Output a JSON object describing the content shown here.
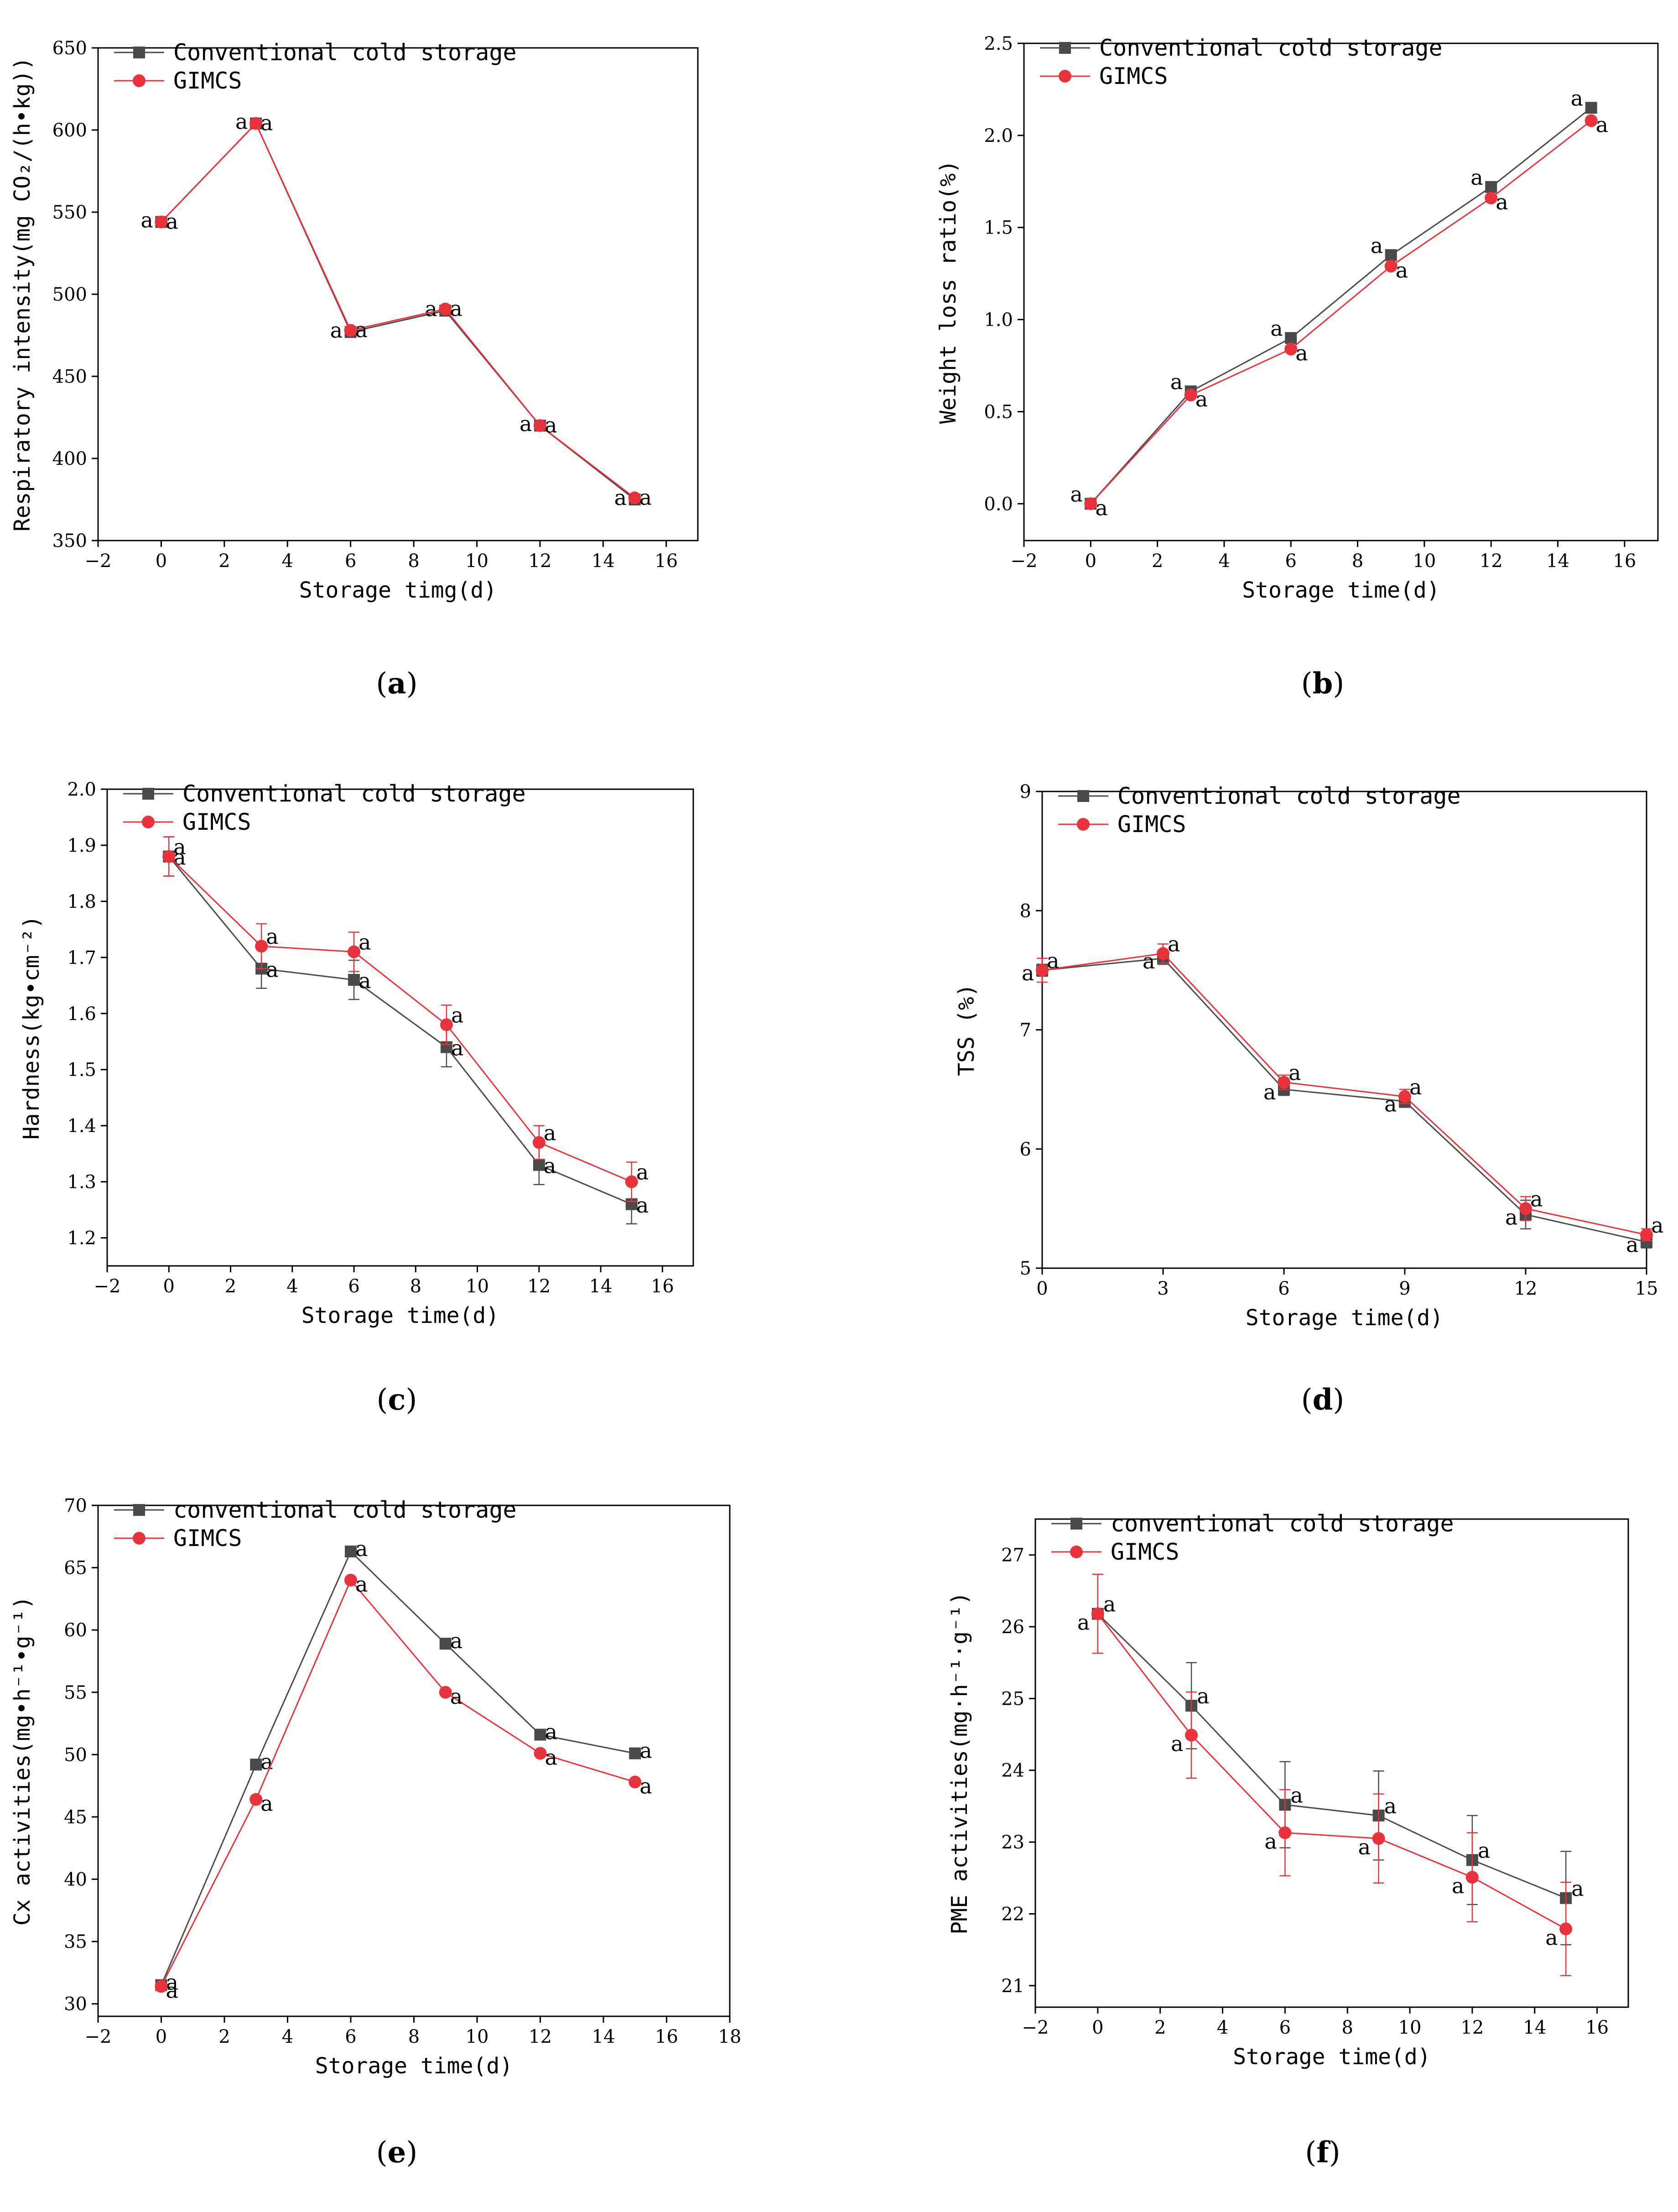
{
  "colors": {
    "series1": "#4a4a4a",
    "series2": "#e8333c",
    "axis": "#000000"
  },
  "chart_data": [
    {
      "id": "a",
      "type": "line",
      "caption": "a",
      "xlabel": "Storage timg(d)",
      "ylabel": "Respiratory intensity(mg CO₂/(h•kg))",
      "xlim": [
        -2,
        17
      ],
      "ylim": [
        350,
        650
      ],
      "xticks": [
        -2,
        0,
        2,
        4,
        6,
        8,
        10,
        12,
        14,
        16
      ],
      "yticks": [
        350,
        400,
        450,
        500,
        550,
        600,
        650
      ],
      "legend": "top-left",
      "x": [
        0,
        3,
        6,
        9,
        12,
        15
      ],
      "series": [
        {
          "name": "Conventional cold storage",
          "marker": "square",
          "values": [
            544,
            604,
            477,
            490,
            420,
            375
          ],
          "errors": [],
          "letters": [
            "a",
            "a",
            "a",
            "a",
            "a",
            "a"
          ]
        },
        {
          "name": "GIMCS",
          "marker": "circle",
          "values": [
            544,
            604,
            478,
            491,
            420,
            376
          ],
          "errors": [],
          "letters": [
            "a",
            "a",
            "a",
            "a",
            "a",
            "a"
          ]
        }
      ]
    },
    {
      "id": "b",
      "type": "line",
      "caption": "b",
      "xlabel": "Storage time(d)",
      "ylabel": "Weight loss ratio(%)",
      "xlim": [
        -2,
        17
      ],
      "ylim": [
        -0.2,
        2.5
      ],
      "xticks": [
        -2,
        0,
        2,
        4,
        6,
        8,
        10,
        12,
        14,
        16
      ],
      "yticks": [
        0.0,
        0.5,
        1.0,
        1.5,
        2.0,
        2.5
      ],
      "yticklabels": [
        "0.0",
        "0.5",
        "1.0",
        "1.5",
        "2.0",
        "2.5"
      ],
      "legend": "top-left",
      "x": [
        0,
        3,
        6,
        9,
        12,
        15
      ],
      "series": [
        {
          "name": "Conventional cold storage",
          "marker": "square",
          "values": [
            0.0,
            0.61,
            0.9,
            1.35,
            1.72,
            2.15
          ],
          "errors": [],
          "letters": [
            "a",
            "a",
            "a",
            "a",
            "a",
            "a"
          ]
        },
        {
          "name": "GIMCS",
          "marker": "circle",
          "values": [
            0.0,
            0.59,
            0.84,
            1.29,
            1.66,
            2.08
          ],
          "errors": [],
          "letters": [
            "a",
            "a",
            "a",
            "a",
            "a",
            "a"
          ]
        }
      ]
    },
    {
      "id": "c",
      "type": "line",
      "caption": "c",
      "xlabel": "Storage time(d)",
      "ylabel": "Hardness(kg•cm⁻²)",
      "xlim": [
        -2,
        17
      ],
      "ylim": [
        1.15,
        2.0
      ],
      "xticks": [
        -2,
        0,
        2,
        4,
        6,
        8,
        10,
        12,
        14,
        16
      ],
      "yticks": [
        1.2,
        1.3,
        1.4,
        1.5,
        1.6,
        1.7,
        1.8,
        1.9,
        2.0
      ],
      "yticklabels": [
        "1.2",
        "1.3",
        "1.4",
        "1.5",
        "1.6",
        "1.7",
        "1.8",
        "1.9",
        "2.0"
      ],
      "legend": "top-left",
      "x": [
        0,
        3,
        6,
        9,
        12,
        15
      ],
      "series": [
        {
          "name": "Conventional cold storage",
          "marker": "square",
          "values": [
            1.88,
            1.68,
            1.66,
            1.54,
            1.33,
            1.26
          ],
          "errors": [
            0.035,
            0.035,
            0.035,
            0.035,
            0.035,
            0.035
          ],
          "letters": [
            "a",
            "a",
            "a",
            "a",
            "a",
            "a"
          ]
        },
        {
          "name": "GIMCS",
          "marker": "circle",
          "values": [
            1.88,
            1.72,
            1.71,
            1.58,
            1.37,
            1.3
          ],
          "errors": [
            0.035,
            0.04,
            0.035,
            0.035,
            0.03,
            0.035
          ],
          "letters": [
            "a",
            "a",
            "a",
            "a",
            "a",
            "a"
          ]
        }
      ]
    },
    {
      "id": "d",
      "type": "line",
      "caption": "d",
      "xlabel": "Storage time(d)",
      "ylabel": "TSS (%)",
      "xlim": [
        0,
        15
      ],
      "ylim": [
        5,
        9
      ],
      "xticks": [
        0,
        3,
        6,
        9,
        12,
        15
      ],
      "yticks": [
        5,
        6,
        7,
        8,
        9
      ],
      "legend": "top-left",
      "x": [
        0,
        3,
        6,
        9,
        12,
        15
      ],
      "series": [
        {
          "name": "Conventional cold storage",
          "marker": "square",
          "values": [
            7.5,
            7.6,
            6.5,
            6.4,
            5.45,
            5.22
          ],
          "errors": [
            0.05,
            0.05,
            0.05,
            0.05,
            0.12,
            0.05
          ],
          "letters": [
            "a",
            "a",
            "a",
            "a",
            "a",
            "a"
          ]
        },
        {
          "name": "GIMCS",
          "marker": "circle",
          "values": [
            7.5,
            7.64,
            6.56,
            6.44,
            5.5,
            5.28
          ],
          "errors": [
            0.1,
            0.08,
            0.06,
            0.06,
            0.1,
            0.05
          ],
          "letters": [
            "a",
            "a",
            "a",
            "a",
            "a",
            "a"
          ]
        }
      ]
    },
    {
      "id": "e",
      "type": "line",
      "caption": "e",
      "xlabel": "Storage time(d)",
      "ylabel": "Cx activities(mg•h⁻¹•g⁻¹)",
      "xlim": [
        -2,
        18
      ],
      "ylim": [
        29,
        70
      ],
      "xticks": [
        -2,
        0,
        2,
        4,
        6,
        8,
        10,
        12,
        14,
        16,
        18
      ],
      "yticks": [
        30,
        35,
        40,
        45,
        50,
        55,
        60,
        65,
        70
      ],
      "legend": "top-left",
      "x": [
        0,
        3,
        6,
        9,
        12,
        15
      ],
      "series": [
        {
          "name": "conventional cold storage",
          "marker": "square",
          "values": [
            31.5,
            49.2,
            66.3,
            58.9,
            51.6,
            50.1
          ],
          "errors": [],
          "letters": [
            "a",
            "a",
            "a",
            "a",
            "a",
            "a"
          ]
        },
        {
          "name": "GIMCS",
          "marker": "circle",
          "values": [
            31.4,
            46.4,
            64.0,
            55.0,
            50.1,
            47.8
          ],
          "errors": [],
          "letters": [
            "a",
            "a",
            "a",
            "a",
            "a",
            "a"
          ]
        }
      ]
    },
    {
      "id": "f",
      "type": "line",
      "caption": "f",
      "xlabel": "Storage time(d)",
      "ylabel": "PME activities(mg·h⁻¹·g⁻¹)",
      "xlim": [
        -2,
        17
      ],
      "ylim": [
        20.7,
        27.5
      ],
      "xticks": [
        -2,
        0,
        2,
        4,
        6,
        8,
        10,
        12,
        14,
        16
      ],
      "yticks": [
        21,
        22,
        23,
        24,
        25,
        26,
        27
      ],
      "legend": "top-left",
      "x": [
        0,
        3,
        6,
        9,
        12,
        15
      ],
      "series": [
        {
          "name": "conventional cold storage",
          "marker": "square",
          "values": [
            26.18,
            24.9,
            23.52,
            23.37,
            22.75,
            22.22
          ],
          "errors": [
            0.55,
            0.6,
            0.6,
            0.62,
            0.62,
            0.65
          ],
          "letters": [
            "a",
            "a",
            "a",
            "a",
            "a",
            "a"
          ]
        },
        {
          "name": "GIMCS",
          "marker": "circle",
          "values": [
            26.18,
            24.49,
            23.13,
            23.05,
            22.51,
            21.79
          ],
          "errors": [
            0.55,
            0.6,
            0.6,
            0.62,
            0.62,
            0.65
          ],
          "letters": [
            "a",
            "a",
            "a",
            "a",
            "a",
            "a"
          ]
        }
      ]
    }
  ]
}
